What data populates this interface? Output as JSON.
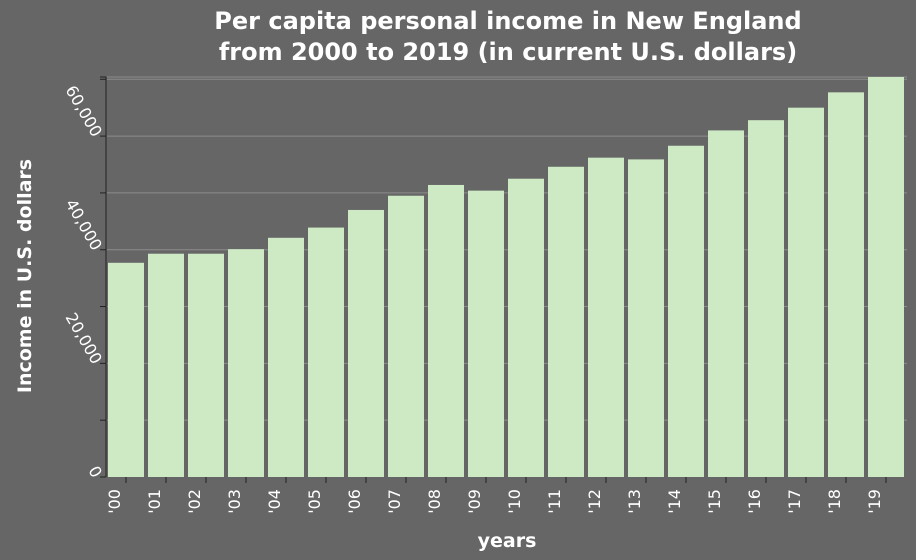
{
  "chart_data": {
    "type": "bar",
    "title_lines": [
      "Per capita personal income in New England",
      "from 2000 to 2019 (in current U.S. dollars)"
    ],
    "xlabel": "years",
    "ylabel": "Income in U.S. dollars",
    "categories": [
      "'00",
      "'01",
      "'02",
      "'03",
      "'04",
      "'05",
      "'06",
      "'07",
      "'08",
      "'09",
      "'10",
      "'11",
      "'12",
      "'13",
      "'14",
      "'15",
      "'16",
      "'17",
      "'18",
      "'19"
    ],
    "values": [
      37700,
      39300,
      39300,
      40100,
      42100,
      43900,
      47000,
      49500,
      51400,
      50400,
      52500,
      54600,
      56200,
      55900,
      58300,
      61000,
      62800,
      65000,
      67700,
      70400
    ],
    "yticks": [
      0,
      20000,
      40000,
      60000
    ],
    "ytick_labels": [
      "0",
      "20,000",
      "40,000",
      "60,000"
    ],
    "ylim": [
      0,
      70400
    ],
    "grid": true,
    "colors": {
      "background": "#666666",
      "bar": "#cdeac4",
      "text": "#ffffff",
      "grid": "#8c8c8c"
    }
  }
}
